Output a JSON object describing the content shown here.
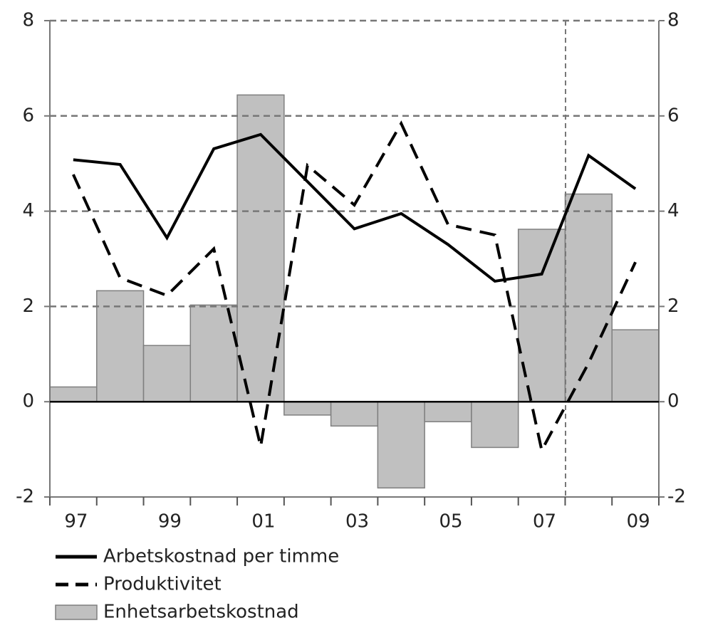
{
  "chart_data": {
    "type": "bar",
    "categories": [
      "97",
      null,
      "99",
      null,
      "01",
      null,
      "03",
      null,
      "05",
      null,
      "07",
      null,
      "09"
    ],
    "series": [
      {
        "name": "Arbetskostnad per timme",
        "type": "line",
        "style": "solid",
        "color": "#000000",
        "values": [
          5.08,
          4.98,
          3.44,
          5.31,
          5.61,
          4.62,
          3.63,
          3.95,
          3.3,
          2.53,
          2.68,
          5.17,
          4.47
        ]
      },
      {
        "name": "Produktivitet",
        "type": "line",
        "style": "dashed",
        "color": "#000000",
        "values": [
          4.77,
          2.6,
          2.23,
          3.21,
          -0.94,
          4.96,
          4.13,
          5.84,
          3.72,
          3.5,
          -1.02,
          0.81,
          2.93
        ]
      },
      {
        "name": "Enhetsarbetskostnad",
        "type": "bar",
        "color": "#c0c0c0",
        "values": [
          0.31,
          2.33,
          1.18,
          2.03,
          6.44,
          -0.28,
          -0.51,
          -1.81,
          -0.42,
          -0.96,
          3.62,
          4.36,
          1.51
        ]
      }
    ],
    "ylim": [
      -2,
      8
    ],
    "yticks": [
      -2,
      0,
      2,
      4,
      6,
      8
    ],
    "y2lim": [
      -2,
      8
    ],
    "y2ticks": [
      -2,
      0,
      2,
      4,
      6,
      8
    ],
    "grid": true,
    "legend": "bottom"
  }
}
